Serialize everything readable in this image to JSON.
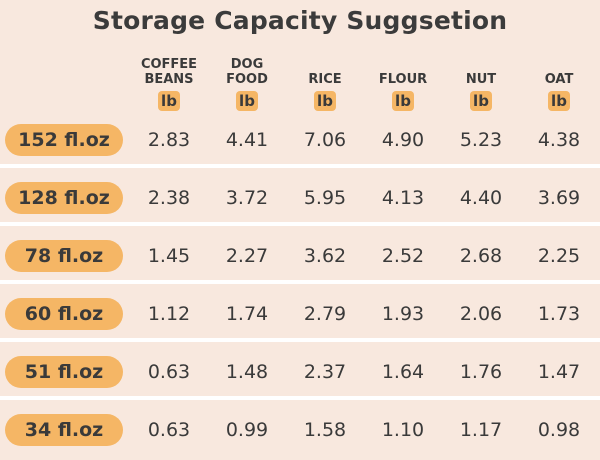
{
  "title": "Storage Capacity Suggsetion",
  "columns": [
    {
      "name_line1": "COFFEE",
      "name_line2": "BEANS",
      "unit": "lb"
    },
    {
      "name_line1": "DOG",
      "name_line2": "FOOD",
      "unit": "lb"
    },
    {
      "name_line1": "",
      "name_line2": "RICE",
      "unit": "lb"
    },
    {
      "name_line1": "",
      "name_line2": "FLOUR",
      "unit": "lb"
    },
    {
      "name_line1": "",
      "name_line2": "NUT",
      "unit": "lb"
    },
    {
      "name_line1": "",
      "name_line2": "OAT",
      "unit": "lb"
    }
  ],
  "rows": [
    {
      "size": "152 fl.oz",
      "values": [
        "2.83",
        "4.41",
        "7.06",
        "4.90",
        "5.23",
        "4.38"
      ]
    },
    {
      "size": "128 fl.oz",
      "values": [
        "2.38",
        "3.72",
        "5.95",
        "4.13",
        "4.40",
        "3.69"
      ]
    },
    {
      "size": "78 fl.oz",
      "values": [
        "1.45",
        "2.27",
        "3.62",
        "2.52",
        "2.68",
        "2.25"
      ]
    },
    {
      "size": "60 fl.oz",
      "values": [
        "1.12",
        "1.74",
        "2.79",
        "1.93",
        "2.06",
        "1.73"
      ]
    },
    {
      "size": "51 fl.oz",
      "values": [
        "0.63",
        "1.48",
        "2.37",
        "1.64",
        "1.76",
        "1.47"
      ]
    },
    {
      "size": "34 fl.oz",
      "values": [
        "0.63",
        "0.99",
        "1.58",
        "1.10",
        "1.17",
        "0.98"
      ]
    }
  ],
  "colors": {
    "background": "#f8e8de",
    "accent": "#f5b665",
    "divider": "#ffffff",
    "text": "#3a3a3a"
  }
}
